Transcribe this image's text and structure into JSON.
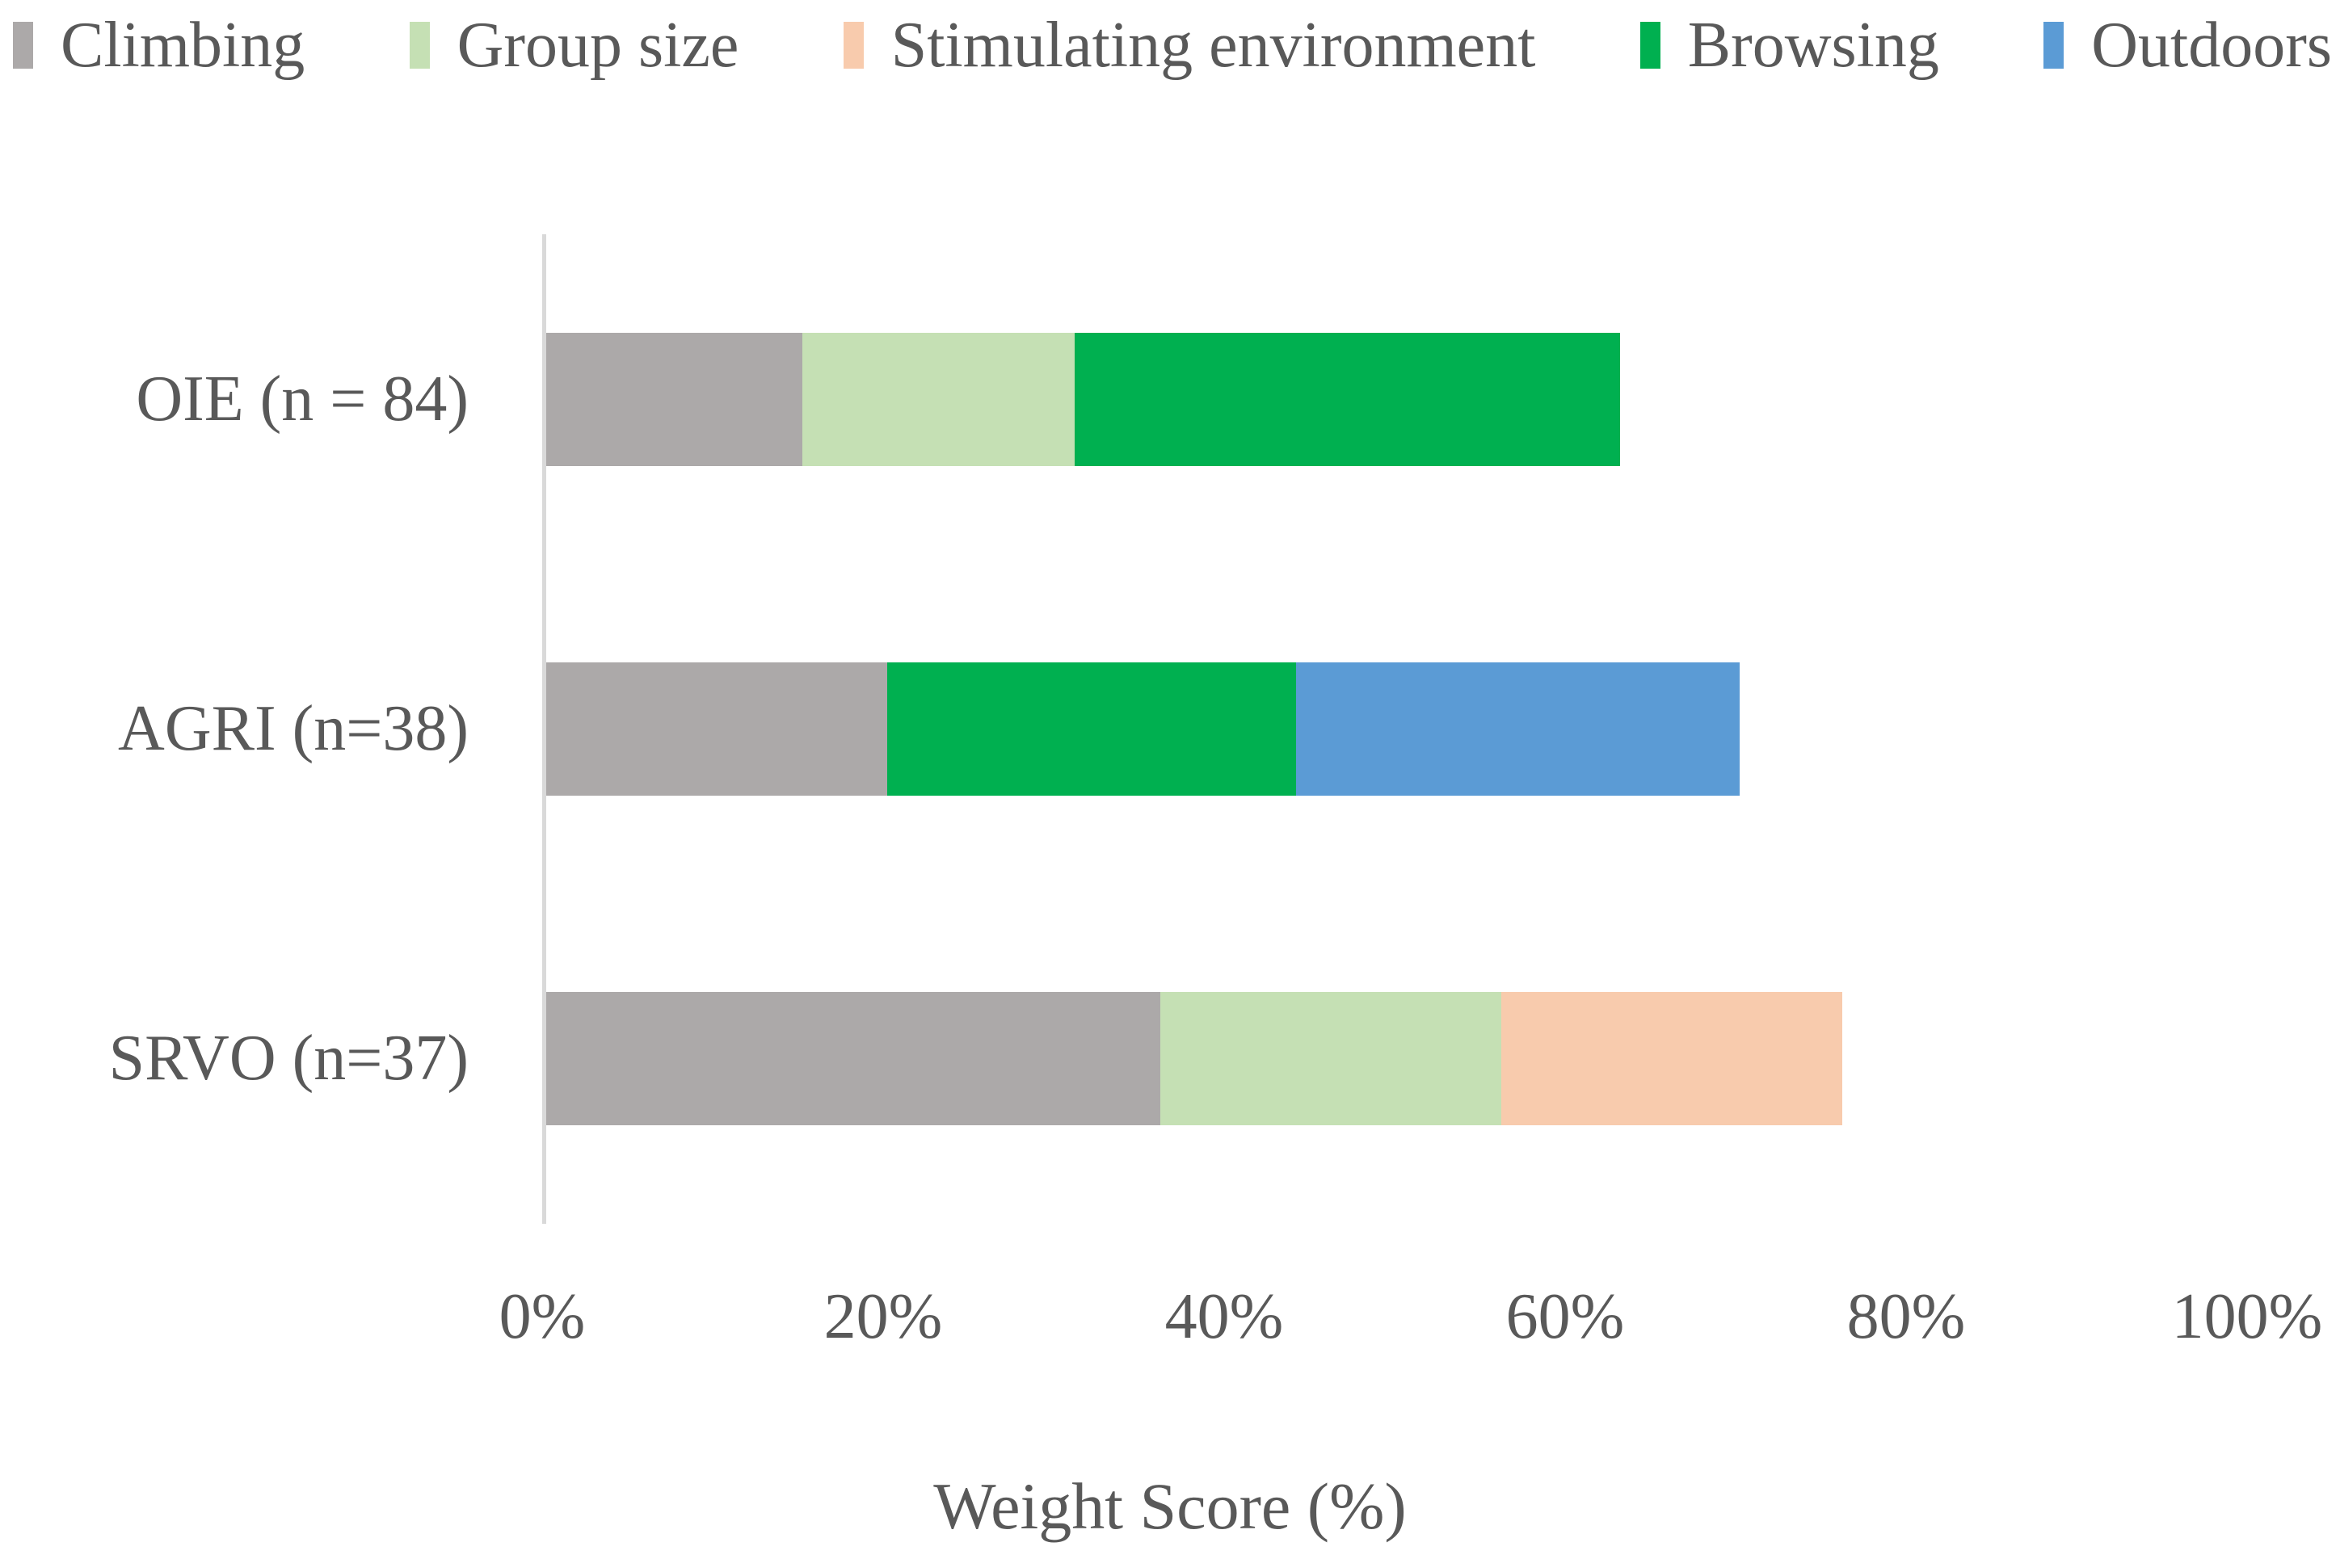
{
  "chart_data": {
    "type": "bar",
    "orientation": "horizontal",
    "stacked": true,
    "title": "",
    "xlabel": "Weight Score (%)",
    "ylabel": "",
    "xlim": [
      0,
      100
    ],
    "x_ticks": [
      "0%",
      "20%",
      "40%",
      "60%",
      "80%",
      "100%"
    ],
    "grid": false,
    "legend_position": "top",
    "categories": [
      "OIE (n = 84)",
      "AGRI (n=38)",
      "SRVO (n=37)"
    ],
    "series": [
      {
        "name": "Climbing",
        "color": "#ACA9A9",
        "values": [
          15,
          20,
          36
        ]
      },
      {
        "name": "Group size",
        "color": "#C5E0B4",
        "values": [
          16,
          0,
          20
        ]
      },
      {
        "name": "Stimulating environment",
        "color": "#F8CBAD",
        "values": [
          0,
          0,
          20
        ]
      },
      {
        "name": "Browsing",
        "color": "#00B050",
        "values": [
          32,
          24,
          0
        ]
      },
      {
        "name": "Outdoors",
        "color": "#5B9BD5",
        "values": [
          0,
          26,
          0
        ]
      }
    ],
    "totals": [
      63,
      70,
      76
    ],
    "text_color": "#595959",
    "axis_line_color": "#D9D9D9"
  }
}
